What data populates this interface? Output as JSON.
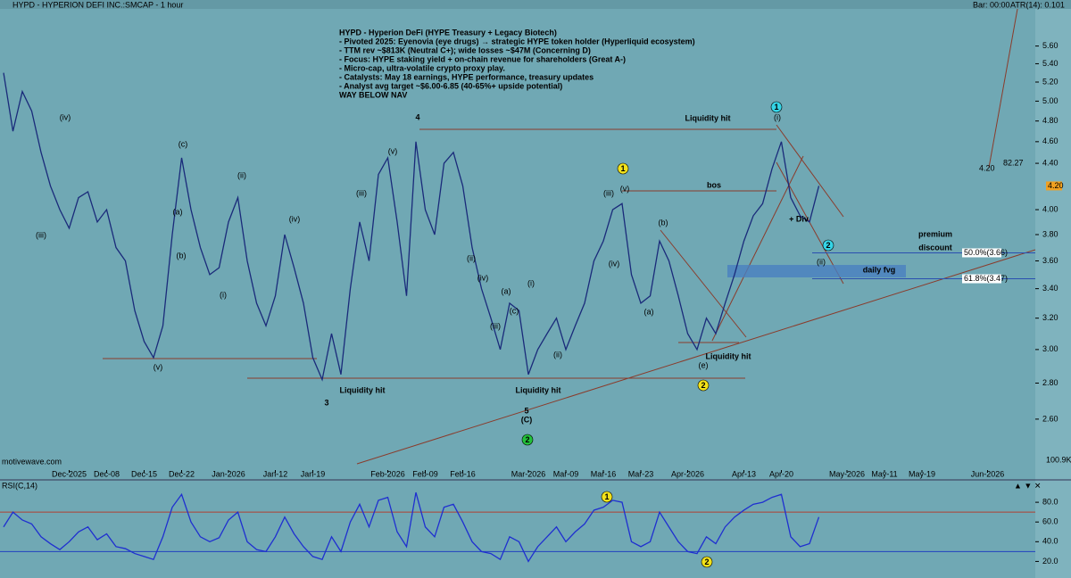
{
  "header": {
    "title": "HYPD - HYPERION DEFI INC.:SMCAP - 1 hour",
    "bar": "Bar: 00:00",
    "atr": "ATR(14): 0.101",
    "watermark": "motivewave.com",
    "volume_label": "100.9K"
  },
  "notes": [
    "HYPD - Hyperion DeFi (HYPE Treasury + Legacy Biotech)",
    "- Pivoted 2025: Eyenovia (eye drugs) → strategic HYPE token holder (Hyperliquid ecosystem)",
    "- TTM rev ~$813K (Neutral C+); wide losses ~$47M (Concerning D)",
    "- Focus: HYPE staking yield + on-chain revenue for shareholders (Great A-)",
    "- Micro-cap, ultra-volatile crypto proxy play.",
    "- Catalysts: May 18 earnings, HYPE performance, treasury updates",
    "- Analyst avg target ~$6.00-6.85 (40-65%+ upside potential)",
    "WAY BELOW NAV"
  ],
  "annotations": [
    "Liquidity hit",
    "Liquidity hit",
    "Liquidity hit",
    "Liquidity hit",
    "bos",
    "+ Div",
    "premium",
    "discount",
    "daily fvg",
    "4",
    "3",
    "5",
    "(C)",
    "4.20",
    "82.27"
  ],
  "wave_labels": [
    "(iv)",
    "(iii)",
    "(v)",
    "(b)",
    "(ii)",
    "(a)",
    "(c)",
    "(iii)",
    "(iv)",
    "(i)",
    "(v)",
    "(iii)",
    "(iv)",
    "(ii)",
    "(i)",
    "(a)",
    "(c)",
    "(iii)",
    "(iv)",
    "(v)",
    "(ii)",
    "(b)",
    "(a)",
    "(e)",
    "(i)",
    "(ii)"
  ],
  "markers": [
    {
      "text": "1",
      "color": "#f2e21a"
    },
    {
      "text": "2",
      "color": "#f2e21a"
    },
    {
      "text": "2",
      "color": "#22c03a"
    },
    {
      "text": "1",
      "color": "#35d4e6"
    },
    {
      "text": "2",
      "color": "#35d4e6"
    },
    {
      "text": "1",
      "color": "#f2e21a"
    },
    {
      "text": "2",
      "color": "#f2e21a"
    }
  ],
  "chart_data": [
    {
      "type": "line",
      "log_scale": true,
      "categories": [
        null,
        null,
        null,
        null,
        null,
        null,
        null,
        "Dec-2025",
        null,
        null,
        null,
        "Dec-08",
        null,
        null,
        null,
        "Dec-15",
        null,
        null,
        null,
        "Dec-22",
        null,
        null,
        null,
        null,
        "Jan-2026",
        null,
        null,
        null,
        null,
        "Jan-12",
        null,
        null,
        null,
        "Jan-19",
        null,
        null,
        null,
        null,
        null,
        null,
        null,
        "Feb-2026",
        null,
        null,
        null,
        "Feb-09",
        null,
        null,
        null,
        "Feb-16",
        null,
        null,
        null,
        null,
        null,
        null,
        "Mar-2026",
        null,
        null,
        null,
        "Mar-09",
        null,
        null,
        null,
        "Mar-16",
        null,
        null,
        null,
        "Mar-23",
        null,
        null,
        null,
        null,
        "Apr-2026",
        null,
        null,
        null,
        null,
        null,
        "Apr-13",
        null,
        null,
        null,
        "Apr-20",
        null,
        null,
        null,
        null,
        null,
        null,
        "May-2026",
        null,
        null,
        null,
        "May-11",
        null,
        null,
        null,
        "May-19",
        null,
        null,
        null,
        null,
        null,
        null,
        "Jun-2026"
      ],
      "series": [
        {
          "color": "#1a2a7a",
          "values": [
            5.3,
            4.7,
            5.1,
            4.9,
            4.5,
            4.2,
            4.0,
            3.85,
            4.1,
            4.15,
            3.9,
            4.0,
            3.7,
            3.6,
            3.25,
            3.05,
            2.95,
            3.15,
            3.8,
            4.45,
            4.0,
            3.7,
            3.5,
            3.55,
            3.9,
            4.1,
            3.6,
            3.3,
            3.15,
            3.35,
            3.8,
            3.55,
            3.3,
            2.95,
            2.82,
            3.1,
            2.85,
            3.4,
            3.9,
            3.6,
            4.3,
            4.45,
            3.9,
            3.35,
            4.6,
            4.0,
            3.8,
            4.4,
            4.5,
            4.2,
            3.7,
            3.4,
            3.2,
            3.0,
            3.3,
            3.25,
            2.85,
            3.0,
            3.1,
            3.2,
            3.0,
            3.15,
            3.3,
            3.6,
            3.75,
            4.0,
            4.05,
            3.5,
            3.3,
            3.35,
            3.75,
            3.6,
            3.35,
            3.1,
            3.0,
            3.2,
            3.1,
            3.3,
            3.5,
            3.75,
            3.95,
            4.05,
            4.35,
            4.6,
            4.1,
            3.95,
            3.9,
            4.2,
            null,
            null,
            null,
            null,
            null,
            null,
            null,
            null,
            null,
            null,
            null,
            null,
            null,
            null,
            null,
            null,
            null,
            null
          ]
        }
      ],
      "ylim": [
        2.35,
        6.0
      ],
      "yticks": [
        {
          "value": 2.6,
          "label": "2.60"
        },
        {
          "value": 2.8,
          "label": "2.80"
        },
        {
          "value": 3.0,
          "label": "3.00"
        },
        {
          "value": 3.2,
          "label": "3.20"
        },
        {
          "value": 3.4,
          "label": "3.40"
        },
        {
          "value": 3.6,
          "label": "3.60"
        },
        {
          "value": 3.8,
          "label": "3.80"
        },
        {
          "value": 4.0,
          "label": "4.00"
        },
        {
          "value": 4.4,
          "label": "4.40"
        },
        {
          "value": 4.6,
          "label": "4.60"
        },
        {
          "value": 4.8,
          "label": "4.80"
        },
        {
          "value": 5.0,
          "label": "5.00"
        },
        {
          "value": 5.2,
          "label": "5.20"
        },
        {
          "value": 5.4,
          "label": "5.40"
        },
        {
          "value": 5.6,
          "label": "5.60"
        }
      ],
      "current_price": {
        "value": 4.2,
        "label": "4.20"
      },
      "levels": [
        {
          "value": 3.66,
          "label": "50.0%(3.66)"
        },
        {
          "value": 3.47,
          "label": "61.8%(3.47)"
        }
      ]
    },
    {
      "type": "line",
      "title": "RSI(C,14)",
      "series": [
        {
          "color": "#1f2fd0",
          "values": [
            55,
            70,
            62,
            58,
            45,
            38,
            32,
            40,
            50,
            55,
            42,
            48,
            35,
            33,
            28,
            25,
            22,
            45,
            75,
            88,
            60,
            45,
            40,
            44,
            62,
            70,
            40,
            32,
            30,
            45,
            65,
            48,
            35,
            25,
            22,
            45,
            30,
            60,
            78,
            55,
            82,
            85,
            50,
            35,
            90,
            55,
            45,
            75,
            78,
            60,
            40,
            30,
            28,
            22,
            45,
            40,
            20,
            35,
            45,
            55,
            40,
            50,
            58,
            72,
            75,
            82,
            80,
            40,
            35,
            40,
            70,
            55,
            40,
            30,
            28,
            45,
            38,
            55,
            65,
            72,
            78,
            80,
            85,
            88,
            45,
            35,
            38,
            65,
            null,
            null,
            null,
            null,
            null,
            null,
            null,
            null,
            null,
            null,
            null,
            null,
            null,
            null,
            null,
            null,
            null,
            null
          ]
        }
      ],
      "ylim": [
        5,
        100
      ],
      "yticks": [
        {
          "value": 20,
          "label": "20.0"
        },
        {
          "value": 40,
          "label": "40.0"
        },
        {
          "value": 60,
          "label": "60.0"
        },
        {
          "value": 80,
          "label": "80.0"
        }
      ],
      "levels": [
        70,
        30
      ]
    }
  ]
}
